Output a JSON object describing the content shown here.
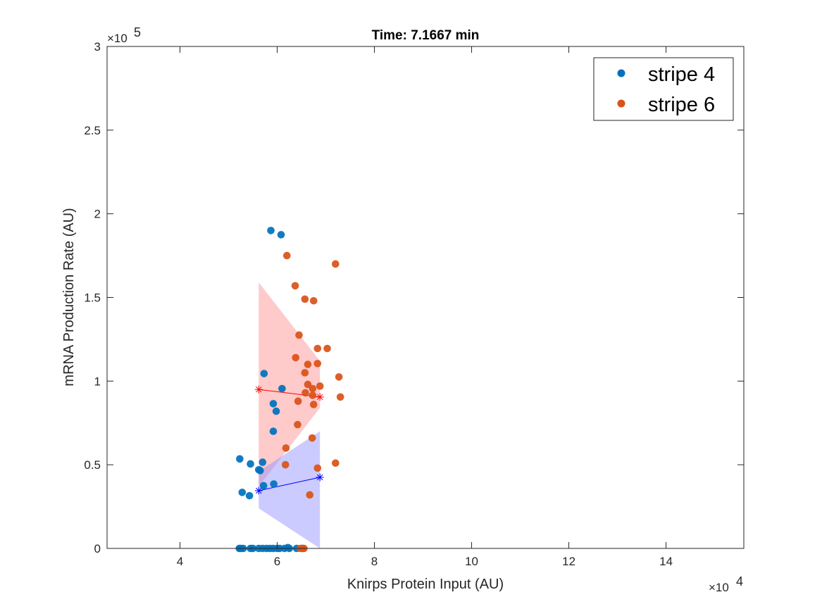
{
  "chart_data": {
    "type": "scatter",
    "title": "Time: 7.1667 min",
    "xlabel": "Knirps Protein Input (AU)",
    "ylabel": "mRNA Production Rate (AU)",
    "xlim": [
      2.5,
      15.6
    ],
    "ylim": [
      0,
      3
    ],
    "x_ticks": [
      4,
      6,
      8,
      10,
      12,
      14
    ],
    "y_ticks": [
      0,
      0.5,
      1,
      1.5,
      2,
      2.5,
      3
    ],
    "x_tick_labels": [
      "4",
      "6",
      "8",
      "10",
      "12",
      "14"
    ],
    "y_tick_labels": [
      "0",
      "0.5",
      "1",
      "1.5",
      "2",
      "2.5",
      "3"
    ],
    "x_multiplier": {
      "base": "×10",
      "exponent": "4"
    },
    "y_multiplier": {
      "base": "×10",
      "exponent": "5"
    },
    "legend": {
      "position": "top-right",
      "entries": [
        "stripe 4",
        "stripe 6"
      ]
    },
    "series": [
      {
        "name": "stripe 4",
        "color": "#0072BD",
        "points": [
          [
            5.87,
            1.9
          ],
          [
            6.08,
            1.875
          ],
          [
            5.73,
            1.045
          ],
          [
            6.1,
            0.955
          ],
          [
            5.92,
            0.865
          ],
          [
            5.98,
            0.82
          ],
          [
            5.92,
            0.7
          ],
          [
            5.23,
            0.535
          ],
          [
            5.45,
            0.505
          ],
          [
            5.7,
            0.515
          ],
          [
            5.62,
            0.47
          ],
          [
            5.65,
            0.465
          ],
          [
            5.72,
            0.375
          ],
          [
            5.93,
            0.385
          ],
          [
            5.28,
            0.335
          ],
          [
            5.43,
            0.315
          ],
          [
            5.22,
            0.0
          ],
          [
            5.25,
            0.0
          ],
          [
            5.3,
            0.0
          ],
          [
            5.45,
            0.0
          ],
          [
            5.5,
            0.0
          ],
          [
            5.62,
            0.0
          ],
          [
            5.7,
            0.0
          ],
          [
            5.78,
            0.0
          ],
          [
            5.85,
            0.0
          ],
          [
            5.92,
            0.0
          ],
          [
            6.0,
            0.0
          ],
          [
            6.05,
            0.0
          ],
          [
            6.15,
            0.0
          ],
          [
            6.22,
            0.005
          ],
          [
            6.25,
            0.0
          ],
          [
            6.4,
            0.0
          ],
          [
            6.52,
            0.0
          ]
        ]
      },
      {
        "name": "stripe 6",
        "color": "#D95319",
        "points": [
          [
            6.2,
            1.75
          ],
          [
            7.2,
            1.7
          ],
          [
            6.37,
            1.57
          ],
          [
            6.57,
            1.49
          ],
          [
            6.75,
            1.48
          ],
          [
            6.45,
            1.275
          ],
          [
            6.38,
            1.14
          ],
          [
            6.83,
            1.195
          ],
          [
            7.03,
            1.195
          ],
          [
            6.57,
            1.05
          ],
          [
            6.63,
            1.1
          ],
          [
            6.83,
            1.105
          ],
          [
            7.27,
            1.025
          ],
          [
            6.63,
            0.98
          ],
          [
            6.88,
            0.97
          ],
          [
            6.73,
            0.955
          ],
          [
            6.58,
            0.93
          ],
          [
            6.73,
            0.915
          ],
          [
            6.43,
            0.88
          ],
          [
            7.3,
            0.905
          ],
          [
            6.75,
            0.86
          ],
          [
            6.42,
            0.74
          ],
          [
            6.72,
            0.66
          ],
          [
            6.18,
            0.6
          ],
          [
            6.17,
            0.5
          ],
          [
            7.2,
            0.51
          ],
          [
            6.83,
            0.48
          ],
          [
            6.67,
            0.32
          ],
          [
            6.48,
            0.0
          ],
          [
            6.52,
            0.0
          ],
          [
            6.55,
            0.0
          ]
        ]
      }
    ],
    "fit_lines": [
      {
        "name": "stripe 6 fit",
        "color": "#FF0000",
        "x": [
          5.62,
          6.88
        ],
        "y": [
          0.95,
          0.905
        ]
      },
      {
        "name": "stripe 4 fit",
        "color": "#0000FF",
        "x": [
          5.62,
          6.88
        ],
        "y": [
          0.345,
          0.425
        ]
      }
    ],
    "bands": [
      {
        "name": "stripe 6 band",
        "color": "#FF8A8A",
        "x": [
          5.62,
          6.88
        ],
        "upper": [
          1.59,
          1.12
        ],
        "lower": [
          0.37,
          0.84
        ]
      },
      {
        "name": "stripe 4 band",
        "color": "#8C8CFF",
        "x": [
          5.62,
          6.88
        ],
        "upper": [
          0.46,
          0.7
        ],
        "lower": [
          0.24,
          0.0
        ]
      }
    ]
  }
}
